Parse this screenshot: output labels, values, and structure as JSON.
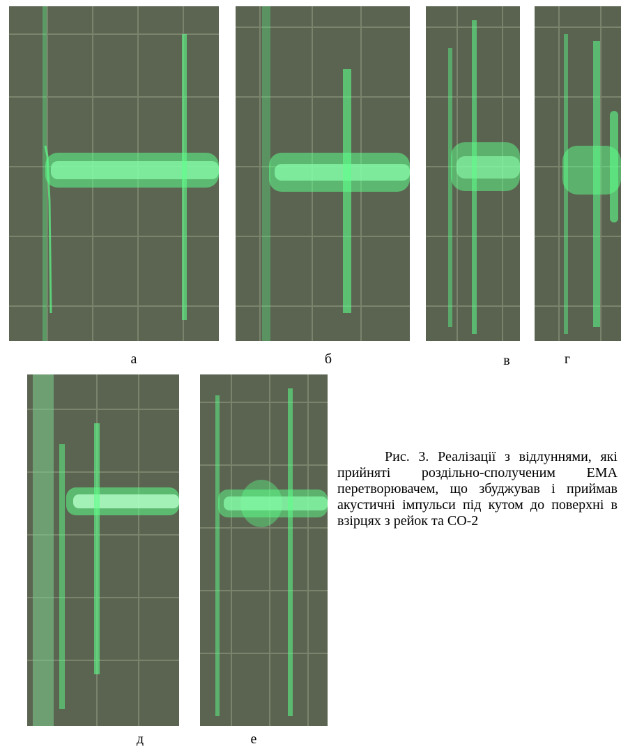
{
  "figure": {
    "panels": [
      {
        "id": "a",
        "label": "а",
        "trace": "green-oscilloscope-echo"
      },
      {
        "id": "b",
        "label": "б",
        "trace": "green-oscilloscope-echo"
      },
      {
        "id": "v",
        "label": "в",
        "trace": "green-oscilloscope-echo"
      },
      {
        "id": "g",
        "label": "г",
        "trace": "green-oscilloscope-echo"
      },
      {
        "id": "d",
        "label": "д",
        "trace": "green-oscilloscope-echo"
      },
      {
        "id": "e",
        "label": "е",
        "trace": "green-oscilloscope-echo"
      }
    ],
    "caption": "Рис. 3. Реалізації з відлуннями, які прийняті роздільно-сполученим ЕМА перетворювачем, що збуджував і приймав акустичні імпульси під кутом до поверхні в взірцях з рейок та СО-2"
  },
  "colors": {
    "screen_background": "#5a6450",
    "grid_line": "#7c8670",
    "trace": "#5dff8a"
  }
}
